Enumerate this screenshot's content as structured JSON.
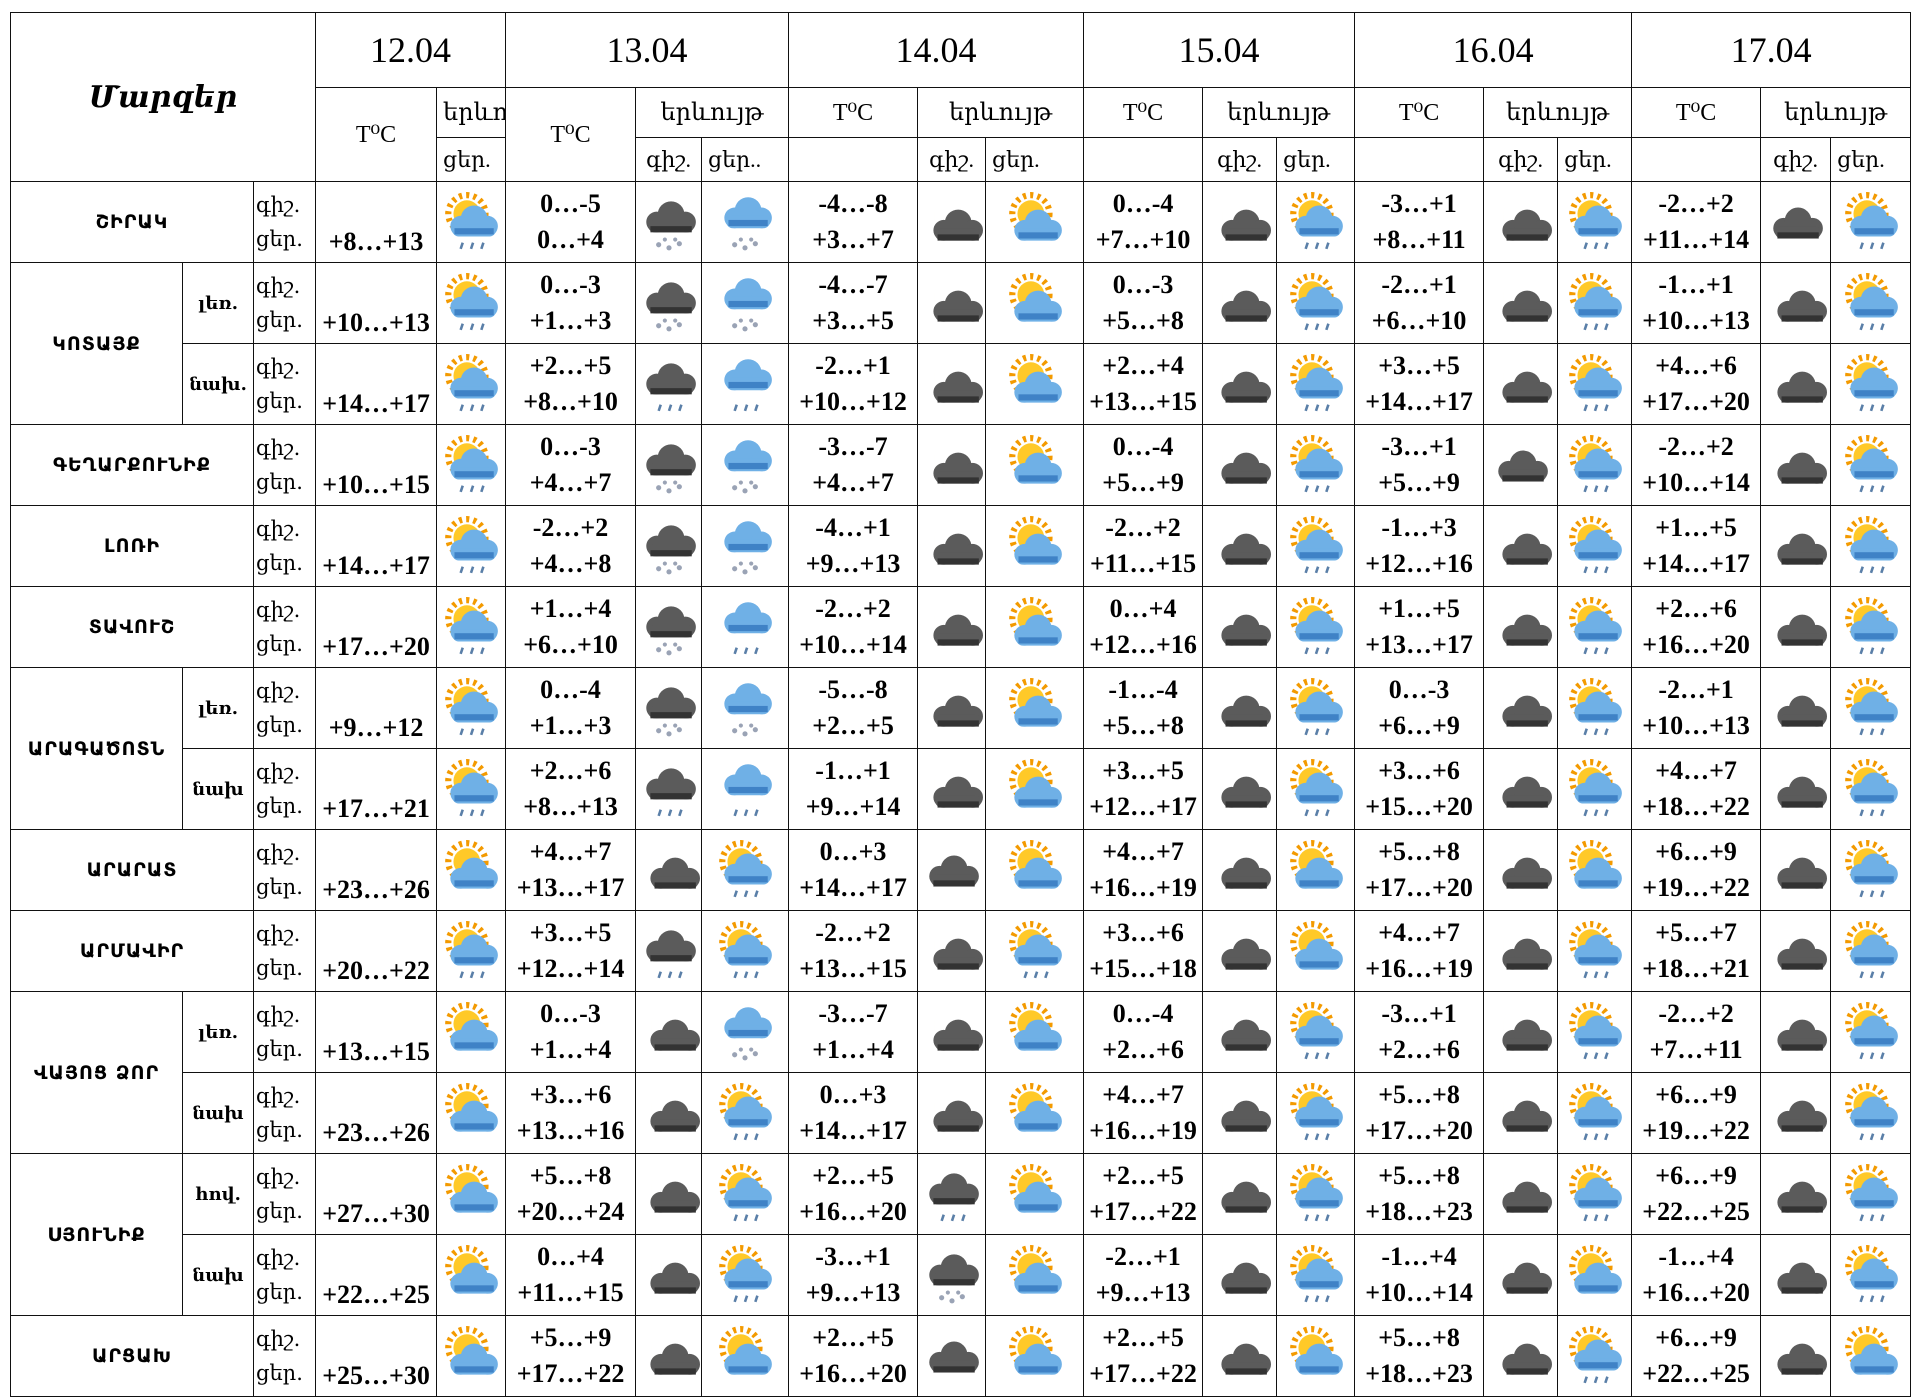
{
  "header": {
    "title": "Մարզեր",
    "dates": [
      "12.04",
      "13.04",
      "14.04",
      "15.04",
      "16.04",
      "17.04"
    ],
    "temp_label": "T⁰C",
    "phenomenon_label": "երևույթ",
    "night_label": "գիշ.",
    "day_label": "ցեր.",
    "day_label_alt": "ցեր.."
  },
  "regions": [
    {
      "name": "ՇԻՐԱԿ",
      "rows": [
        {
          "first": "+8…+13",
          "days": [
            [
              "0…-5",
              "0…+4"
            ],
            [
              "-4…-8",
              "+3…+7"
            ],
            [
              "0…-4",
              "+7…+10"
            ],
            [
              "-3…+1",
              "+8…+11"
            ],
            [
              "-2…+2",
              "+11…+14"
            ]
          ]
        }
      ]
    },
    {
      "name": "ԿՈՏԱՅՔ",
      "rows": [
        {
          "sub": "լեռ.",
          "first": "+10…+13",
          "days": [
            [
              "0…-3",
              "+1…+3"
            ],
            [
              "-4…-7",
              "+3…+5"
            ],
            [
              "0…-3",
              "+5…+8"
            ],
            [
              "-2…+1",
              "+6…+10"
            ],
            [
              "-1…+1",
              "+10…+13"
            ]
          ]
        },
        {
          "sub": "նախ.",
          "first": "+14…+17",
          "days": [
            [
              "+2…+5",
              "+8…+10"
            ],
            [
              "-2…+1",
              "+10…+12"
            ],
            [
              "+2…+4",
              "+13…+15"
            ],
            [
              "+3…+5",
              "+14…+17"
            ],
            [
              "+4…+6",
              "+17…+20"
            ]
          ]
        }
      ]
    },
    {
      "name": "ԳԵՂԱՐՔՈՒՆԻՔ",
      "rows": [
        {
          "first": "+10…+15",
          "days": [
            [
              "0…-3",
              "+4…+7"
            ],
            [
              "-3…-7",
              "+4…+7"
            ],
            [
              "0…-4",
              "+5…+9"
            ],
            [
              "-3…+1",
              "+5…+9"
            ],
            [
              "-2…+2",
              "+10…+14"
            ]
          ]
        }
      ]
    },
    {
      "name": "ԼՈՌԻ",
      "rows": [
        {
          "first": "+14…+17",
          "days": [
            [
              "-2…+2",
              "+4…+8"
            ],
            [
              "-4…+1",
              "+9…+13"
            ],
            [
              "-2…+2",
              "+11…+15"
            ],
            [
              "-1…+3",
              "+12…+16"
            ],
            [
              "+1…+5",
              "+14…+17"
            ]
          ]
        }
      ]
    },
    {
      "name": "ՏԱՎՈՒՇ",
      "rows": [
        {
          "first": "+17…+20",
          "days": [
            [
              "+1…+4",
              "+6…+10"
            ],
            [
              "-2…+2",
              "+10…+14"
            ],
            [
              "0…+4",
              "+12…+16"
            ],
            [
              "+1…+5",
              "+13…+17"
            ],
            [
              "+2…+6",
              "+16…+20"
            ]
          ]
        }
      ]
    },
    {
      "name": "ԱՐԱԳԱԾՈՏՆ",
      "rows": [
        {
          "sub": "լեռ.",
          "first": "+9…+12",
          "days": [
            [
              "0…-4",
              "+1…+3"
            ],
            [
              "-5…-8",
              "+2…+5"
            ],
            [
              "-1…-4",
              "+5…+8"
            ],
            [
              "0…-3",
              "+6…+9"
            ],
            [
              "-2…+1",
              "+10…+13"
            ]
          ]
        },
        {
          "sub": "նախ",
          "first": "+17…+21",
          "days": [
            [
              "+2…+6",
              "+8…+13"
            ],
            [
              "-1…+1",
              "+9…+14"
            ],
            [
              "+3…+5",
              "+12…+17"
            ],
            [
              "+3…+6",
              "+15…+20"
            ],
            [
              "+4…+7",
              "+18…+22"
            ]
          ]
        }
      ]
    },
    {
      "name": "ԱՐԱՐԱՏ",
      "rows": [
        {
          "first": "+23…+26",
          "days": [
            [
              "+4…+7",
              "+13…+17"
            ],
            [
              "0…+3",
              "+14…+17"
            ],
            [
              "+4…+7",
              "+16…+19"
            ],
            [
              "+5…+8",
              "+17…+20"
            ],
            [
              "+6…+9",
              "+19…+22"
            ]
          ]
        }
      ]
    },
    {
      "name": "ԱՐՄԱՎԻՐ",
      "rows": [
        {
          "first": "+20…+22",
          "days": [
            [
              "+3…+5",
              "+12…+14"
            ],
            [
              "-2…+2",
              "+13…+15"
            ],
            [
              "+3…+6",
              "+15…+18"
            ],
            [
              "+4…+7",
              "+16…+19"
            ],
            [
              "+5…+7",
              "+18…+21"
            ]
          ]
        }
      ]
    },
    {
      "name": "ՎԱՅՈՑ ՁՈՐ",
      "rows": [
        {
          "sub": "լեռ.",
          "first": "+13…+15",
          "days": [
            [
              "0…-3",
              "+1…+4"
            ],
            [
              "-3…-7",
              "+1…+4"
            ],
            [
              "0…-4",
              "+2…+6"
            ],
            [
              "-3…+1",
              "+2…+6"
            ],
            [
              "-2…+2",
              "+7…+11"
            ]
          ]
        },
        {
          "sub": "նախ",
          "first": "+23…+26",
          "days": [
            [
              "+3…+6",
              "+13…+16"
            ],
            [
              "0…+3",
              "+14…+17"
            ],
            [
              "+4…+7",
              "+16…+19"
            ],
            [
              "+5…+8",
              "+17…+20"
            ],
            [
              "+6…+9",
              "+19…+22"
            ]
          ]
        }
      ]
    },
    {
      "name": "ՍՅՈՒՆԻՔ",
      "rows": [
        {
          "sub": "հով.",
          "first": "+27…+30",
          "days": [
            [
              "+5…+8",
              "+20…+24"
            ],
            [
              "+2…+5",
              "+16…+20"
            ],
            [
              "+2…+5",
              "+17…+22"
            ],
            [
              "+5…+8",
              "+18…+23"
            ],
            [
              "+6…+9",
              "+22…+25"
            ]
          ]
        },
        {
          "sub": "նախ",
          "first": "+22…+25",
          "days": [
            [
              "0…+4",
              "+11…+15"
            ],
            [
              "-3…+1",
              "+9…+13"
            ],
            [
              "-2…+1",
              "+9…+13"
            ],
            [
              "-1…+4",
              "+10…+14"
            ],
            [
              "-1…+4",
              "+16…+20"
            ]
          ]
        }
      ]
    },
    {
      "name": "ԱՐՑԱԽ",
      "rows": [
        {
          "first": "+25…+30",
          "days": [
            [
              "+5…+9",
              "+17…+22"
            ],
            [
              "+2…+5",
              "+16…+20"
            ],
            [
              "+2…+5",
              "+17…+22"
            ],
            [
              "+5…+8",
              "+18…+23"
            ],
            [
              "+6…+9",
              "+22…+25"
            ]
          ]
        }
      ]
    }
  ]
}
